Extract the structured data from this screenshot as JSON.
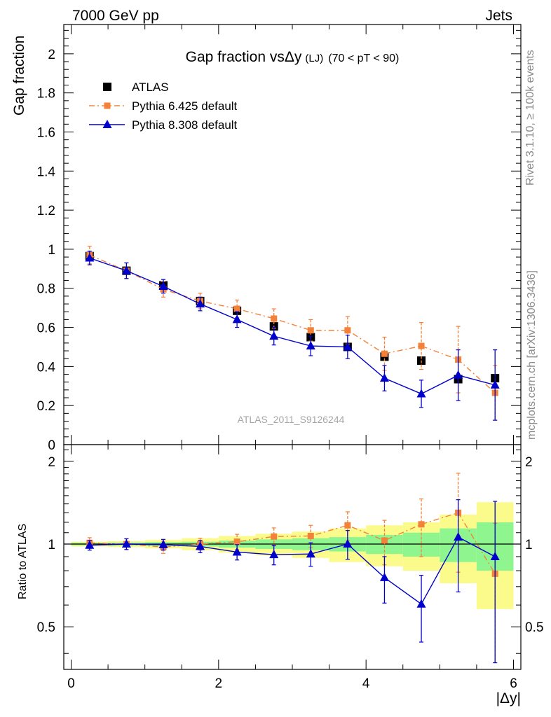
{
  "header": {
    "left": "7000 GeV pp",
    "right": "Jets"
  },
  "side_text": {
    "rivet": "Rivet 3.1.10, ≥ 100k events",
    "mcplots": "mcplots.cern.ch [arXiv:1306.3436]"
  },
  "watermark": "ATLAS_2011_S9126244",
  "colors": {
    "atlas": "#000000",
    "pythia6": "#f4813a",
    "pythia8": "#0000cc",
    "band_inner": "#8ff58f",
    "band_outer": "#fbfb8c"
  },
  "chart_data": [
    {
      "type": "scatter",
      "title_main": "Gap fraction vsΔy",
      "title_small": "(LJ)",
      "title_range": "(70 < pT <  90)",
      "ylabel": "Gap fraction",
      "xlabel": "",
      "xlim": [
        -0.1,
        6.1
      ],
      "ylim": [
        0,
        2.15
      ],
      "yticks": [
        0,
        0.2,
        0.4,
        0.6,
        0.8,
        1,
        1.2,
        1.4,
        1.6,
        1.8,
        2
      ],
      "ytick_labels": [
        "0",
        "0.2",
        "0.4",
        "0.6",
        "0.8",
        "1",
        "1.2",
        "1.4",
        "1.6",
        "1.8",
        "2"
      ],
      "x": [
        0.25,
        0.75,
        1.25,
        1.75,
        2.25,
        2.75,
        3.25,
        3.75,
        4.25,
        4.75,
        5.25,
        5.75
      ],
      "legend": [
        {
          "label": "ATLAS",
          "key": "atlas"
        },
        {
          "label": "Pythia 6.425 default",
          "key": "pythia6"
        },
        {
          "label": "Pythia 8.308 default",
          "key": "pythia8"
        }
      ],
      "series": [
        {
          "name": "ATLAS",
          "key": "atlas",
          "values": [
            0.965,
            0.89,
            0.815,
            0.735,
            0.685,
            0.605,
            0.55,
            0.5,
            0.45,
            0.43,
            0.335,
            0.34
          ],
          "errors": [
            0.01,
            0.01,
            0.01,
            0.01,
            0.01,
            0.01,
            0.01,
            0.01,
            0.02,
            0.02,
            0.02,
            0.02
          ]
        },
        {
          "name": "Pythia 6.425 default",
          "key": "pythia6",
          "values": [
            0.97,
            0.89,
            0.795,
            0.735,
            0.695,
            0.645,
            0.585,
            0.585,
            0.465,
            0.505,
            0.435,
            0.265
          ],
          "errors": [
            0.045,
            0.04,
            0.04,
            0.04,
            0.045,
            0.05,
            0.055,
            0.07,
            0.085,
            0.12,
            0.17,
            0.14
          ]
        },
        {
          "name": "Pythia 8.308 default",
          "key": "pythia8",
          "values": [
            0.955,
            0.89,
            0.81,
            0.72,
            0.64,
            0.555,
            0.505,
            0.5,
            0.34,
            0.26,
            0.355,
            0.305
          ],
          "errors": [
            0.035,
            0.04,
            0.035,
            0.035,
            0.04,
            0.045,
            0.05,
            0.06,
            0.065,
            0.07,
            0.13,
            0.18
          ]
        }
      ]
    },
    {
      "type": "scatter",
      "ylabel": "Ratio to ATLAS",
      "xlabel": "|Δy|",
      "xlim": [
        -0.1,
        6.1
      ],
      "ylim": [
        0.35,
        2.3
      ],
      "xticks": [
        0,
        2,
        4,
        6
      ],
      "xtick_labels": [
        "0",
        "2",
        "4",
        "6"
      ],
      "yticks": [
        0.5,
        1,
        2
      ],
      "ytick_labels": [
        "0.5",
        "1",
        "2"
      ],
      "bin_edges": [
        0,
        0.5,
        1,
        1.5,
        2,
        2.5,
        3,
        3.5,
        4,
        4.5,
        5,
        5.5,
        6
      ],
      "band_inner": [
        0.01,
        0.012,
        0.016,
        0.02,
        0.03,
        0.04,
        0.05,
        0.06,
        0.08,
        0.1,
        0.14,
        0.2
      ],
      "band_outer": [
        0.02,
        0.025,
        0.035,
        0.05,
        0.07,
        0.09,
        0.11,
        0.14,
        0.17,
        0.2,
        0.28,
        0.42
      ],
      "series": [
        {
          "name": "Pythia 6.425 default",
          "key": "pythia6",
          "values": [
            1.01,
            1.0,
            0.975,
            1.0,
            1.02,
            1.065,
            1.07,
            1.17,
            1.03,
            1.18,
            1.3,
            0.78
          ],
          "errors": [
            0.045,
            0.045,
            0.05,
            0.05,
            0.065,
            0.08,
            0.1,
            0.14,
            0.19,
            0.28,
            0.51,
            0.41
          ]
        },
        {
          "name": "Pythia 8.308 default",
          "key": "pythia8",
          "values": [
            0.99,
            1.0,
            0.995,
            0.98,
            0.935,
            0.915,
            0.92,
            1.0,
            0.755,
            0.605,
            1.06,
            0.9
          ],
          "errors": [
            0.04,
            0.045,
            0.045,
            0.05,
            0.06,
            0.075,
            0.09,
            0.12,
            0.145,
            0.165,
            0.39,
            0.53
          ]
        }
      ]
    }
  ]
}
